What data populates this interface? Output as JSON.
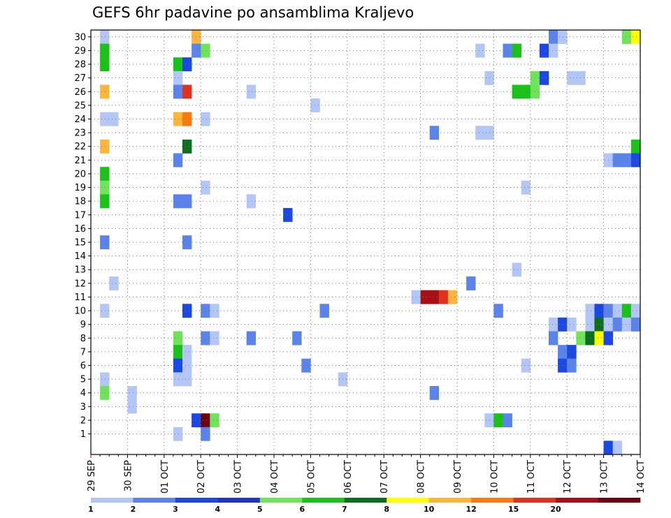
{
  "chart_data": {
    "type": "heatmap",
    "title": "GEFS 6hr padavine po ansamblima Kraljevo",
    "xlabel": "",
    "ylabel": "",
    "grid": true,
    "x_tick_labels": [
      "29 SEP",
      "30 SEP",
      "01 OCT",
      "02 OCT",
      "03 OCT",
      "04 OCT",
      "05 OCT",
      "06 OCT",
      "07 OCT",
      "08 OCT",
      "09 OCT",
      "10 OCT",
      "11 OCT",
      "12 OCT",
      "13 OCT",
      "14 OCT"
    ],
    "x_unit": "6-hour step (4 per day), 0 = 29 SEP",
    "xlim": [
      0,
      60
    ],
    "y_tick_labels": [
      "1",
      "2",
      "3",
      "4",
      "5",
      "6",
      "7",
      "8",
      "9",
      "10",
      "11",
      "12",
      "13",
      "14",
      "15",
      "16",
      "17",
      "18",
      "19",
      "20",
      "21",
      "22",
      "23",
      "24",
      "25",
      "26",
      "27",
      "28",
      "29",
      "30"
    ],
    "ylim": [
      0,
      30
    ],
    "colorbar": {
      "levels": [
        "1",
        "2",
        "3",
        "4",
        "5",
        "6",
        "7",
        "8",
        "10",
        "12",
        "15",
        "20"
      ],
      "colors": [
        "#b3c6f5",
        "#5a84eb",
        "#1a48e0",
        "#1f35c8",
        "#6fe45a",
        "#19c219",
        "#0c6e1f",
        "#ffff00",
        "#ffb43c",
        "#fb7a10",
        "#e2301f",
        "#a50f15",
        "#6b0010"
      ]
    },
    "cells": [
      {
        "m": 30,
        "t": [
          1,
          0
        ]
      },
      {
        "m": 30,
        "t": [
          11,
          8
        ]
      },
      {
        "m": 30,
        "t": [
          50,
          1
        ]
      },
      {
        "m": 30,
        "t": [
          51,
          0
        ]
      },
      {
        "m": 30,
        "t": [
          58,
          4
        ]
      },
      {
        "m": 30,
        "t": [
          59,
          7
        ]
      },
      {
        "m": 29,
        "t": [
          1,
          5
        ]
      },
      {
        "m": 29,
        "t": [
          11,
          1
        ]
      },
      {
        "m": 29,
        "t": [
          12,
          4
        ]
      },
      {
        "m": 29,
        "t": [
          42,
          0
        ]
      },
      {
        "m": 29,
        "t": [
          45,
          1
        ]
      },
      {
        "m": 29,
        "t": [
          46,
          5
        ]
      },
      {
        "m": 29,
        "t": [
          49,
          2
        ]
      },
      {
        "m": 29,
        "t": [
          50,
          0
        ]
      },
      {
        "m": 28,
        "t": [
          1,
          5
        ]
      },
      {
        "m": 28,
        "t": [
          9,
          5
        ]
      },
      {
        "m": 28,
        "t": [
          10,
          2
        ]
      },
      {
        "m": 27,
        "t": [
          9,
          0
        ]
      },
      {
        "m": 27,
        "t": [
          43,
          0
        ]
      },
      {
        "m": 27,
        "t": [
          48,
          4
        ]
      },
      {
        "m": 27,
        "t": [
          49,
          2
        ]
      },
      {
        "m": 27,
        "t": [
          52,
          0
        ]
      },
      {
        "m": 27,
        "t": [
          53,
          0
        ]
      },
      {
        "m": 26,
        "t": [
          1,
          8
        ]
      },
      {
        "m": 26,
        "t": [
          9,
          1
        ]
      },
      {
        "m": 26,
        "t": [
          10,
          10
        ]
      },
      {
        "m": 26,
        "t": [
          17,
          0
        ]
      },
      {
        "m": 26,
        "t": [
          46,
          5
        ]
      },
      {
        "m": 26,
        "t": [
          47,
          5
        ]
      },
      {
        "m": 26,
        "t": [
          48,
          4
        ]
      },
      {
        "m": 25,
        "t": [
          24,
          0
        ]
      },
      {
        "m": 24,
        "t": [
          1,
          0
        ]
      },
      {
        "m": 24,
        "t": [
          2,
          0
        ]
      },
      {
        "m": 24,
        "t": [
          9,
          8
        ]
      },
      {
        "m": 24,
        "t": [
          10,
          9
        ]
      },
      {
        "m": 24,
        "t": [
          12,
          0
        ]
      },
      {
        "m": 23,
        "t": [
          37,
          1
        ]
      },
      {
        "m": 23,
        "t": [
          42,
          0
        ]
      },
      {
        "m": 23,
        "t": [
          43,
          0
        ]
      },
      {
        "m": 22,
        "t": [
          1,
          8
        ]
      },
      {
        "m": 22,
        "t": [
          10,
          6
        ]
      },
      {
        "m": 22,
        "t": [
          59,
          5
        ]
      },
      {
        "m": 21,
        "t": [
          9,
          1
        ]
      },
      {
        "m": 21,
        "t": [
          56,
          0
        ]
      },
      {
        "m": 21,
        "t": [
          57,
          1
        ]
      },
      {
        "m": 21,
        "t": [
          58,
          1
        ]
      },
      {
        "m": 21,
        "t": [
          59,
          2
        ]
      },
      {
        "m": 20,
        "t": [
          1,
          5
        ]
      },
      {
        "m": 19,
        "t": [
          1,
          4
        ]
      },
      {
        "m": 19,
        "t": [
          12,
          0
        ]
      },
      {
        "m": 19,
        "t": [
          47,
          0
        ]
      },
      {
        "m": 18,
        "t": [
          1,
          5
        ]
      },
      {
        "m": 18,
        "t": [
          9,
          1
        ]
      },
      {
        "m": 18,
        "t": [
          10,
          1
        ]
      },
      {
        "m": 18,
        "t": [
          17,
          0
        ]
      },
      {
        "m": 17,
        "t": [
          21,
          2
        ]
      },
      {
        "m": 15,
        "t": [
          1,
          1
        ]
      },
      {
        "m": 15,
        "t": [
          10,
          1
        ]
      },
      {
        "m": 13,
        "t": [
          46,
          0
        ]
      },
      {
        "m": 12,
        "t": [
          2,
          0
        ]
      },
      {
        "m": 12,
        "t": [
          41,
          1
        ]
      },
      {
        "m": 11,
        "t": [
          35,
          0
        ]
      },
      {
        "m": 11,
        "t": [
          36,
          11
        ]
      },
      {
        "m": 11,
        "t": [
          37,
          11
        ]
      },
      {
        "m": 11,
        "t": [
          38,
          10
        ]
      },
      {
        "m": 11,
        "t": [
          39,
          8
        ]
      },
      {
        "m": 10,
        "t": [
          1,
          0
        ]
      },
      {
        "m": 10,
        "t": [
          10,
          2
        ]
      },
      {
        "m": 10,
        "t": [
          12,
          1
        ]
      },
      {
        "m": 10,
        "t": [
          13,
          0
        ]
      },
      {
        "m": 10,
        "t": [
          25,
          1
        ]
      },
      {
        "m": 10,
        "t": [
          44,
          1
        ]
      },
      {
        "m": 10,
        "t": [
          54,
          0
        ]
      },
      {
        "m": 10,
        "t": [
          55,
          2
        ]
      },
      {
        "m": 10,
        "t": [
          56,
          1
        ]
      },
      {
        "m": 10,
        "t": [
          57,
          0
        ]
      },
      {
        "m": 10,
        "t": [
          58,
          5
        ]
      },
      {
        "m": 10,
        "t": [
          59,
          0
        ]
      },
      {
        "m": 9,
        "t": [
          50,
          0
        ]
      },
      {
        "m": 9,
        "t": [
          51,
          2
        ]
      },
      {
        "m": 9,
        "t": [
          52,
          0
        ]
      },
      {
        "m": 9,
        "t": [
          54,
          0
        ]
      },
      {
        "m": 9,
        "t": [
          55,
          6
        ]
      },
      {
        "m": 9,
        "t": [
          56,
          0
        ]
      },
      {
        "m": 9,
        "t": [
          57,
          1
        ]
      },
      {
        "m": 9,
        "t": [
          58,
          0
        ]
      },
      {
        "m": 9,
        "t": [
          59,
          1
        ]
      },
      {
        "m": 8,
        "t": [
          9,
          4
        ]
      },
      {
        "m": 8,
        "t": [
          12,
          1
        ]
      },
      {
        "m": 8,
        "t": [
          13,
          0
        ]
      },
      {
        "m": 8,
        "t": [
          17,
          1
        ]
      },
      {
        "m": 8,
        "t": [
          22,
          1
        ]
      },
      {
        "m": 8,
        "t": [
          50,
          1
        ]
      },
      {
        "m": 8,
        "t": [
          53,
          4
        ]
      },
      {
        "m": 8,
        "t": [
          54,
          6
        ]
      },
      {
        "m": 8,
        "t": [
          55,
          7
        ]
      },
      {
        "m": 8,
        "t": [
          56,
          2
        ]
      },
      {
        "m": 7,
        "t": [
          9,
          5
        ]
      },
      {
        "m": 7,
        "t": [
          10,
          0
        ]
      },
      {
        "m": 7,
        "t": [
          51,
          1
        ]
      },
      {
        "m": 7,
        "t": [
          52,
          2
        ]
      },
      {
        "m": 6,
        "t": [
          9,
          2
        ]
      },
      {
        "m": 6,
        "t": [
          10,
          0
        ]
      },
      {
        "m": 6,
        "t": [
          23,
          1
        ]
      },
      {
        "m": 6,
        "t": [
          47,
          0
        ]
      },
      {
        "m": 6,
        "t": [
          51,
          2
        ]
      },
      {
        "m": 6,
        "t": [
          52,
          1
        ]
      },
      {
        "m": 5,
        "t": [
          1,
          0
        ]
      },
      {
        "m": 5,
        "t": [
          9,
          0
        ]
      },
      {
        "m": 5,
        "t": [
          10,
          0
        ]
      },
      {
        "m": 5,
        "t": [
          27,
          0
        ]
      },
      {
        "m": 4,
        "t": [
          1,
          4
        ]
      },
      {
        "m": 4,
        "t": [
          4,
          0
        ]
      },
      {
        "m": 4,
        "t": [
          37,
          1
        ]
      },
      {
        "m": 3,
        "t": [
          4,
          0
        ]
      },
      {
        "m": 2,
        "t": [
          11,
          2
        ]
      },
      {
        "m": 2,
        "t": [
          12,
          12
        ]
      },
      {
        "m": 2,
        "t": [
          13,
          4
        ]
      },
      {
        "m": 2,
        "t": [
          43,
          0
        ]
      },
      {
        "m": 2,
        "t": [
          44,
          5
        ]
      },
      {
        "m": 2,
        "t": [
          45,
          1
        ]
      },
      {
        "m": 1,
        "t": [
          9,
          0
        ]
      },
      {
        "m": 1,
        "t": [
          12,
          1
        ]
      },
      {
        "m": 0,
        "t": [
          56,
          2
        ]
      },
      {
        "m": 0,
        "t": [
          57,
          0
        ]
      }
    ]
  }
}
